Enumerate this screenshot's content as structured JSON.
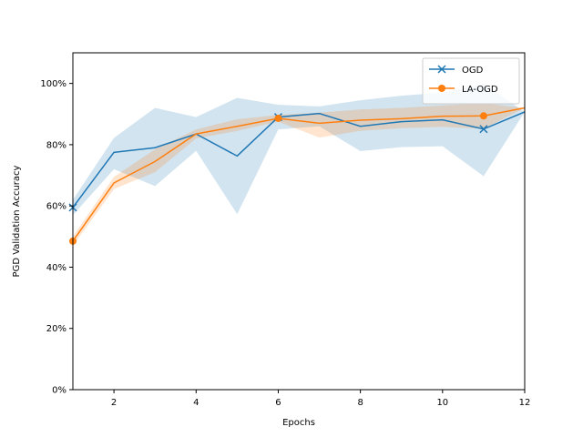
{
  "chart_data": {
    "type": "line",
    "xlabel": "Epochs",
    "ylabel": "PGD Validation Accuracy",
    "xlim": [
      1,
      12
    ],
    "ylim": [
      0,
      110
    ],
    "x_ticks": [
      2,
      4,
      6,
      8,
      10,
      12
    ],
    "y_ticks": [
      0,
      20,
      40,
      60,
      80,
      100
    ],
    "y_tick_suffix": "%",
    "grid": false,
    "legend_position": "top-right",
    "x": [
      1,
      2,
      3,
      4,
      5,
      6,
      7,
      8,
      9,
      10,
      11,
      12
    ],
    "series": [
      {
        "name": "OGD",
        "color": "#1f77b4",
        "marker": "x",
        "marker_at": [
          1,
          6,
          11
        ],
        "values": [
          59.5,
          77.5,
          79,
          83.5,
          76.3,
          89,
          90.2,
          86,
          87.5,
          88.1,
          85.1,
          90.7
        ],
        "band_lower": [
          57,
          72,
          66.5,
          78,
          57.3,
          85,
          86,
          77.9,
          79.2,
          79.5,
          69.7,
          90.7
        ],
        "band_upper": [
          62,
          82.2,
          92,
          89,
          95.3,
          93,
          92.5,
          94.5,
          96,
          97,
          99.8,
          90.7
        ]
      },
      {
        "name": "LA-OGD",
        "color": "#ff7f0e",
        "marker": "o",
        "marker_at": [
          1,
          6,
          11
        ],
        "values": [
          48.5,
          67.5,
          74.5,
          83.5,
          86,
          88.6,
          87,
          88,
          88.5,
          89.3,
          89.4,
          92
        ],
        "band_lower": [
          47,
          65.5,
          71,
          82,
          84.5,
          87.5,
          82.3,
          84.5,
          85.4,
          85.8,
          85.2,
          92
        ],
        "band_upper": [
          50,
          69.5,
          78.5,
          85,
          88.3,
          89.7,
          90.5,
          91.5,
          92,
          92.8,
          93.5,
          92
        ]
      }
    ]
  }
}
